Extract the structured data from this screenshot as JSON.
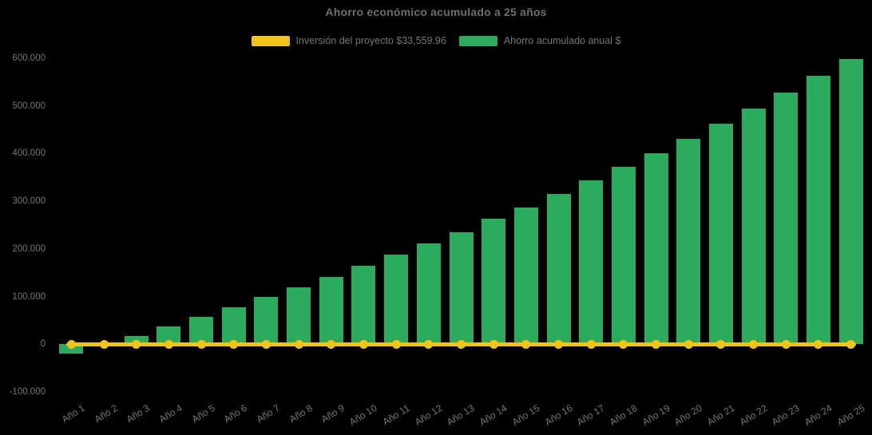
{
  "chart_data": {
    "type": "bar",
    "title": "Ahorro económico acumulado a 25 años",
    "background_color": "#000000",
    "text_color": "#757575",
    "grid": false,
    "legend_position": "top",
    "categories": [
      "Año 1",
      "Año 2",
      "Año 3",
      "Año 4",
      "Año 5",
      "Año 6",
      "Año 7",
      "Año 8",
      "Año 9",
      "Año 10",
      "Año 11",
      "Año 12",
      "Año 13",
      "Año 14",
      "Año 15",
      "Año 16",
      "Año 17",
      "Año 18",
      "Año 19",
      "Año 20",
      "Año 21",
      "Año 22",
      "Año 23",
      "Año 24",
      "Año 25"
    ],
    "series": [
      {
        "name": "Inversión del proyecto $33,559.96",
        "type": "line",
        "color": "#f0c419",
        "constant_value": 0
      },
      {
        "name": "Ahorro acumulado anual $",
        "type": "bar",
        "color": "#2aab5e",
        "values": [
          -19000,
          1000,
          17000,
          37000,
          58000,
          78000,
          100000,
          120000,
          141000,
          165000,
          188000,
          212000,
          235000,
          263000,
          287000,
          315000,
          344000,
          372000,
          400000,
          431000,
          462000,
          494000,
          528000,
          563000,
          598000
        ]
      }
    ],
    "ylim": [
      -100000,
      600000
    ],
    "y_ticks": [
      {
        "label": "600.000",
        "value": 600000
      },
      {
        "label": "500.000",
        "value": 500000
      },
      {
        "label": "400.000",
        "value": 400000
      },
      {
        "label": "300.000",
        "value": 300000
      },
      {
        "label": "200.000",
        "value": 200000
      },
      {
        "label": "100.000",
        "value": 100000
      },
      {
        "label": "0",
        "value": 0
      },
      {
        "label": "-100.000",
        "value": -100000
      }
    ],
    "xlabel": "",
    "ylabel": ""
  }
}
